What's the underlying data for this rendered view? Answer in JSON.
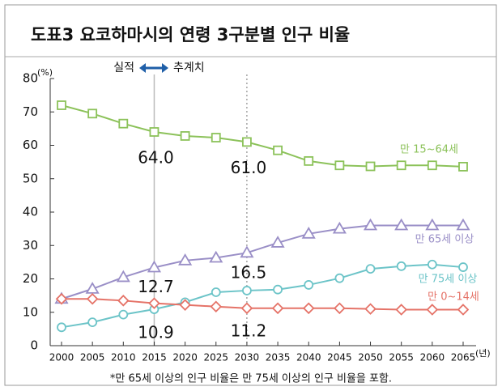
{
  "chart_data": {
    "type": "line",
    "title": "도표3 요코하마시의 연령 3구분별 인구 비율",
    "y_unit": "(%)",
    "x_unit": "(년)",
    "actual_label": "실적",
    "forecast_label": "추계치",
    "footnote": "*만 65세 이상의 인구 비율은 만 75세 이상의 인구 비율을 포함.",
    "categories": [
      "2000",
      "2005",
      "2010",
      "2015",
      "2020",
      "2025",
      "2030",
      "2035",
      "2040",
      "2045",
      "2050",
      "2055",
      "2060",
      "2065"
    ],
    "ylim": [
      0,
      80
    ],
    "yticks": [
      0,
      10,
      20,
      30,
      40,
      50,
      60,
      70,
      80
    ],
    "series": [
      {
        "name": "만 15~64세",
        "color": "#8cc25a",
        "marker": "square",
        "values": [
          72,
          69.5,
          66.5,
          64.0,
          62.8,
          62.3,
          61.0,
          58.5,
          55.3,
          54.0,
          53.7,
          54.0,
          54.0,
          53.6
        ],
        "value_labels": [
          null,
          null,
          null,
          "64.0",
          null,
          null,
          "61.0",
          null,
          null,
          null,
          null,
          null,
          null,
          null
        ]
      },
      {
        "name": "만 65세 이상",
        "color": "#9a8fc7",
        "marker": "triangle",
        "values": [
          14.0,
          17.0,
          20.5,
          23.4,
          25.5,
          26.3,
          27.8,
          30.8,
          33.5,
          35.0,
          36.0,
          36.0,
          36.0,
          36.0
        ],
        "value_labels": [
          null,
          null,
          null,
          null,
          null,
          null,
          null,
          null,
          null,
          null,
          null,
          null,
          null,
          null
        ]
      },
      {
        "name": "만 75세 이상",
        "color": "#6cc4c8",
        "marker": "circle",
        "values": [
          5.5,
          7.0,
          9.3,
          10.9,
          13.0,
          16.0,
          16.5,
          16.8,
          18.2,
          20.2,
          23.0,
          23.8,
          24.3,
          23.5
        ],
        "value_labels": [
          null,
          null,
          null,
          "10.9",
          null,
          null,
          "16.5",
          null,
          null,
          null,
          null,
          null,
          null,
          null
        ]
      },
      {
        "name": "만 0~14세",
        "color": "#e57368",
        "marker": "diamond",
        "values": [
          14.0,
          14.0,
          13.5,
          12.7,
          12.2,
          11.7,
          11.2,
          11.2,
          11.2,
          11.2,
          11.0,
          10.8,
          10.8,
          10.8
        ],
        "value_labels": [
          null,
          null,
          null,
          "12.7",
          null,
          null,
          "11.2",
          null,
          null,
          null,
          null,
          null,
          null,
          null
        ]
      }
    ]
  }
}
